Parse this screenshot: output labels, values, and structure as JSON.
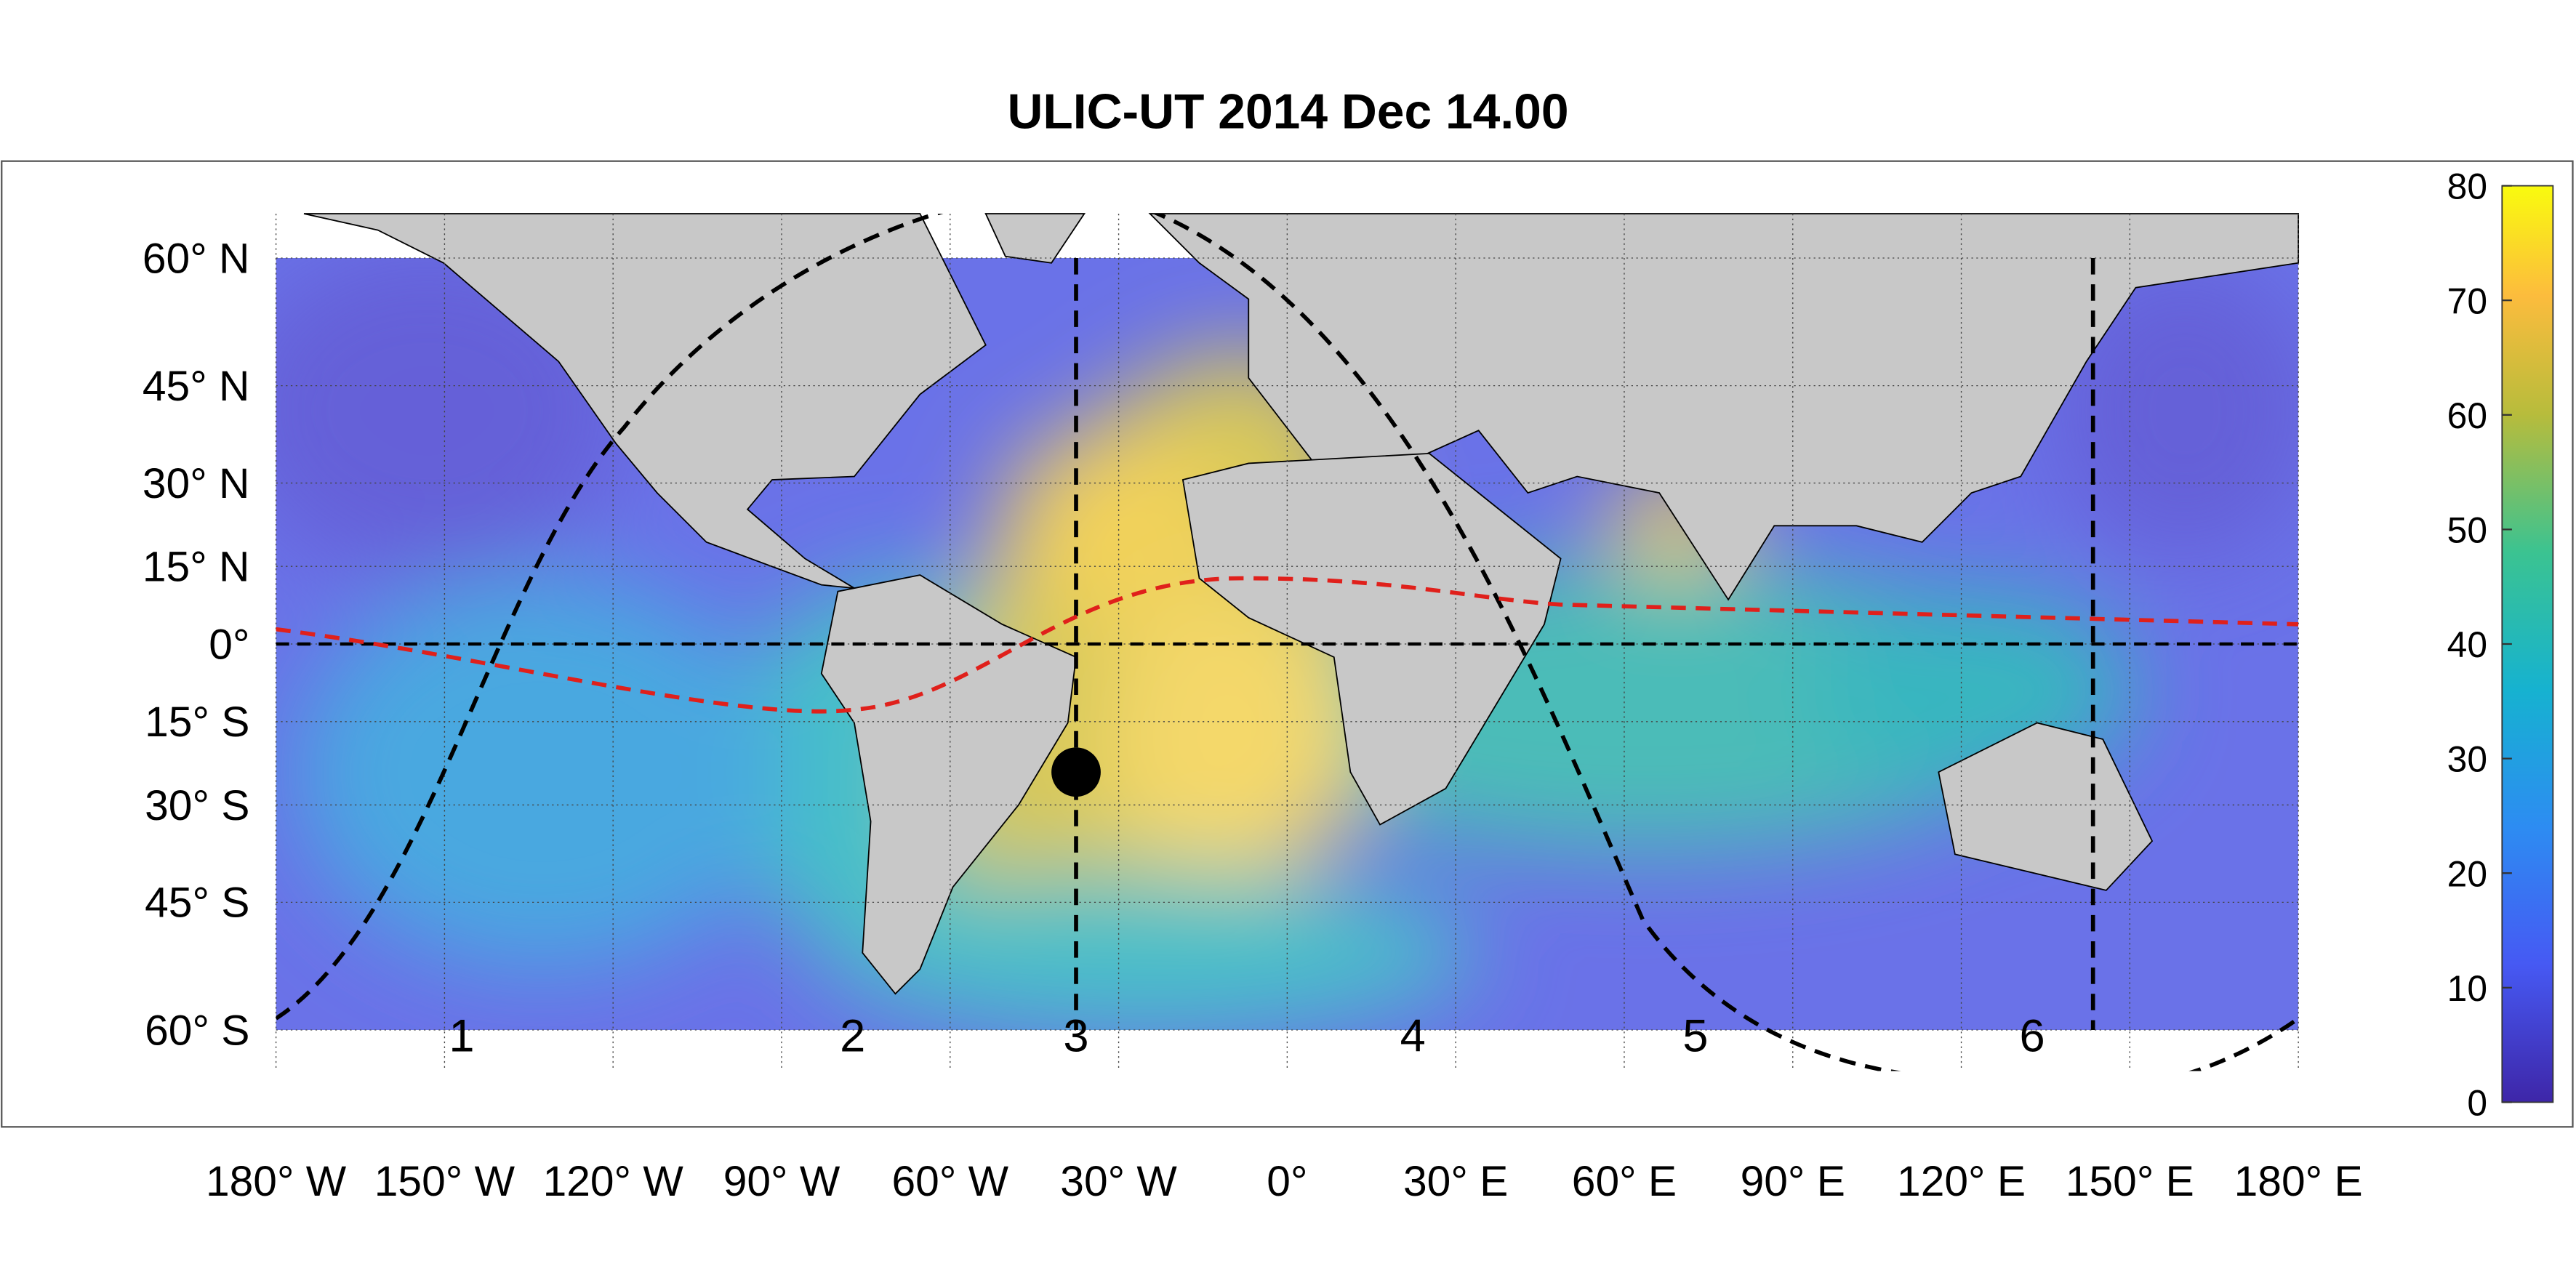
{
  "title": "ULIC-UT 2014 Dec 14.00",
  "map": {
    "lon_ticks": [
      {
        "value": -180,
        "label": "180° W"
      },
      {
        "value": -150,
        "label": "150° W"
      },
      {
        "value": -120,
        "label": "120° W"
      },
      {
        "value": -90,
        "label": "90° W"
      },
      {
        "value": -60,
        "label": "60° W"
      },
      {
        "value": -30,
        "label": "30° W"
      },
      {
        "value": 0,
        "label": "0°"
      },
      {
        "value": 30,
        "label": "30° E"
      },
      {
        "value": 60,
        "label": "60° E"
      },
      {
        "value": 90,
        "label": "90° E"
      },
      {
        "value": 120,
        "label": "120° E"
      },
      {
        "value": 150,
        "label": "150° E"
      },
      {
        "value": 180,
        "label": "180° E"
      }
    ],
    "lat_ticks": [
      {
        "value": 60,
        "label": "60° N"
      },
      {
        "value": 45,
        "label": "45° N"
      },
      {
        "value": 30,
        "label": "30° N"
      },
      {
        "value": 15,
        "label": "15° N"
      },
      {
        "value": 0,
        "label": "0°"
      },
      {
        "value": -15,
        "label": "15° S"
      },
      {
        "value": -30,
        "label": "30° S"
      },
      {
        "value": -45,
        "label": "45° S"
      },
      {
        "value": -60,
        "label": "60° S"
      }
    ],
    "regions": [
      "1",
      "2",
      "3",
      "4",
      "5",
      "6"
    ]
  },
  "colorbar": {
    "lim": [
      0,
      80
    ],
    "ticks": [
      0,
      10,
      20,
      30,
      40,
      50,
      60,
      70,
      80
    ]
  }
}
